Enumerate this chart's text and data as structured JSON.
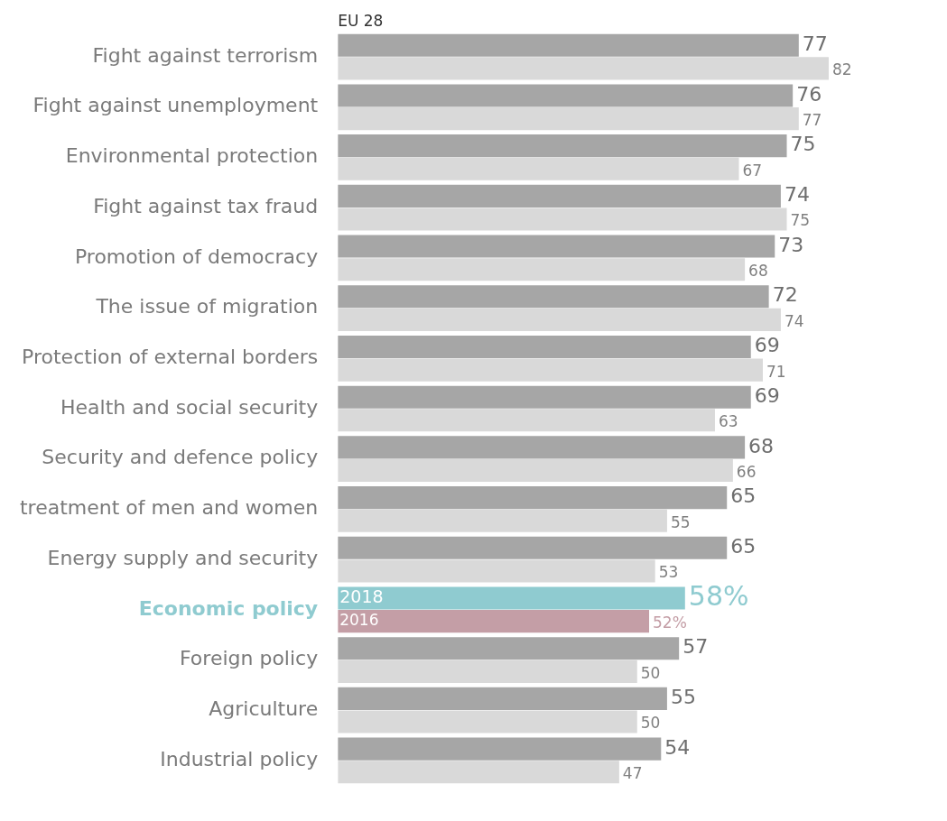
{
  "chart_data": {
    "type": "bar",
    "orientation": "horizontal",
    "subtitle": "EU 28",
    "legend": false,
    "categories": [
      "Fight against terrorism",
      "Fight against unemployment",
      "Environmental protection",
      "Fight against tax fraud",
      "Promotion of democracy",
      "The issue of migration",
      "Protection of external borders",
      "Health and social security",
      "Security and defence policy",
      "treatment of men and women",
      "Energy supply and security",
      "Economic policy",
      "Foreign policy",
      "Agriculture",
      "Industrial policy"
    ],
    "series": [
      {
        "name": "2018",
        "color": "#a6a6a6",
        "colors": [
          "#a6a6a6",
          "#a6a6a6",
          "#a6a6a6",
          "#a6a6a6",
          "#a6a6a6",
          "#a6a6a6",
          "#a6a6a6",
          "#a6a6a6",
          "#a6a6a6",
          "#a6a6a6",
          "#a6a6a6",
          "#8fcbd0",
          "#a6a6a6",
          "#a6a6a6",
          "#a6a6a6"
        ],
        "values": [
          77,
          76,
          75,
          74,
          73,
          72,
          69,
          69,
          68,
          65,
          65,
          58,
          57,
          55,
          54
        ],
        "value_labels": [
          "77",
          "76",
          "75",
          "74",
          "73",
          "72",
          "69",
          "69",
          "68",
          "65",
          "65",
          "58%",
          "57",
          "55",
          "54"
        ]
      },
      {
        "name": "2016",
        "color": "#d9d9d9",
        "colors": [
          "#d9d9d9",
          "#d9d9d9",
          "#d9d9d9",
          "#d9d9d9",
          "#d9d9d9",
          "#d9d9d9",
          "#d9d9d9",
          "#d9d9d9",
          "#d9d9d9",
          "#d9d9d9",
          "#d9d9d9",
          "#c49ea6",
          "#d9d9d9",
          "#d9d9d9",
          "#d9d9d9"
        ],
        "values": [
          82,
          77,
          67,
          75,
          68,
          74,
          71,
          63,
          66,
          55,
          53,
          52,
          50,
          50,
          47
        ],
        "value_labels": [
          "82",
          "77",
          "67",
          "75",
          "68",
          "74",
          "71",
          "63",
          "66",
          "55",
          "53",
          "52%",
          "50",
          "50",
          "47"
        ]
      }
    ]
  }
}
